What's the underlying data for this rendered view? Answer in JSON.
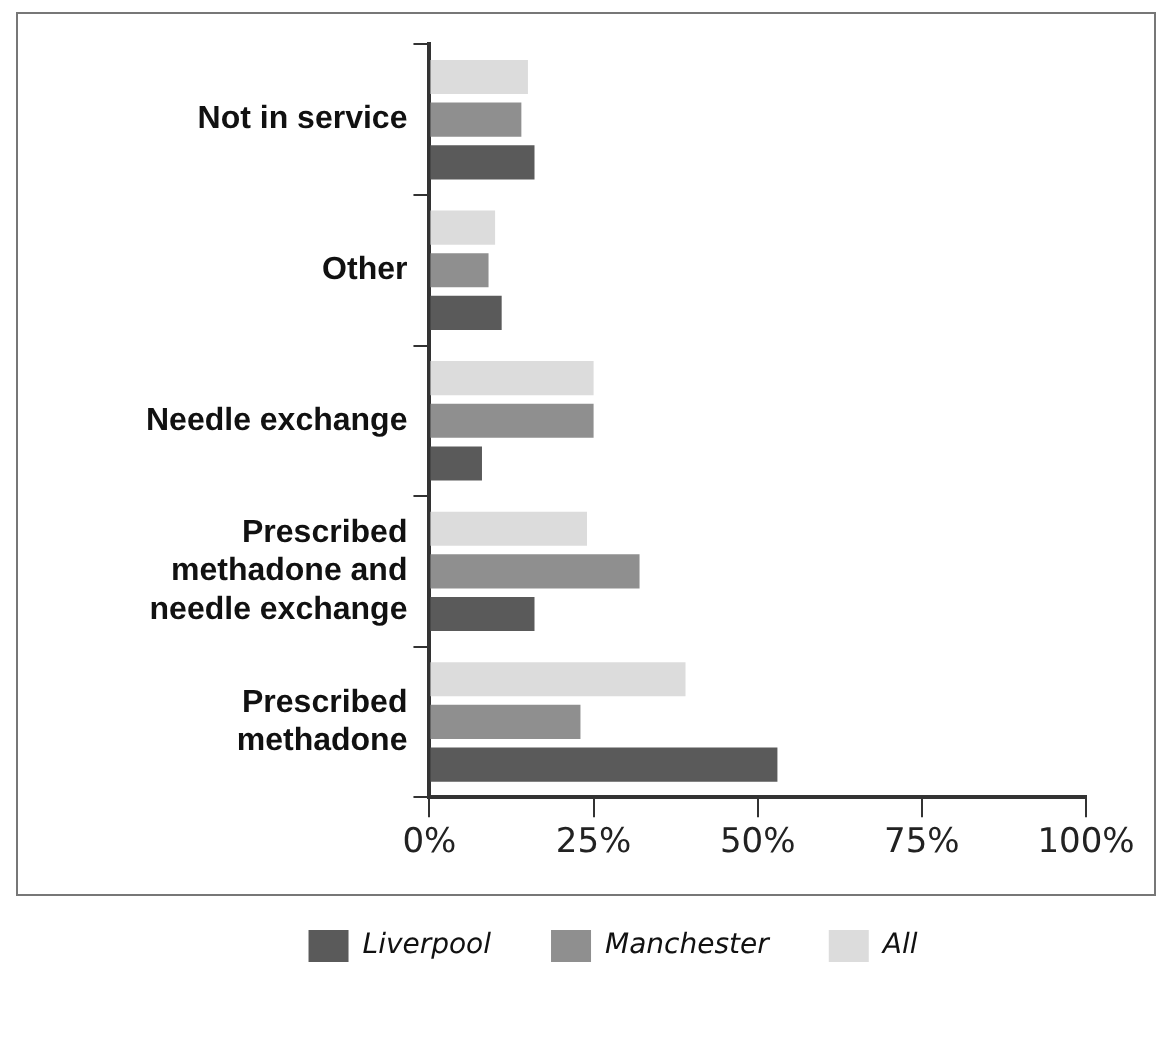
{
  "chart_data": {
    "type": "bar",
    "orientation": "horizontal",
    "categories": [
      "Not in service",
      "Other",
      "Needle exchange",
      "Prescribed methadone and needle exchange",
      "Prescribed methadone"
    ],
    "series": [
      {
        "name": "Liverpool",
        "color": "#5a5a5a",
        "values": [
          16,
          11,
          8,
          16,
          53
        ]
      },
      {
        "name": "Manchester",
        "color": "#8f8f8f",
        "values": [
          14,
          9,
          25,
          32,
          23
        ]
      },
      {
        "name": "All",
        "color": "#dcdcdc",
        "values": [
          15,
          10,
          25,
          24,
          39
        ]
      }
    ],
    "xlim": [
      0,
      100
    ],
    "xticks": [
      {
        "value": 0,
        "label": "0%"
      },
      {
        "value": 25,
        "label": "25%"
      },
      {
        "value": 50,
        "label": "50%"
      },
      {
        "value": 75,
        "label": "75%"
      },
      {
        "value": 100,
        "label": "100%"
      }
    ],
    "grid": false,
    "legend": "bottom"
  }
}
